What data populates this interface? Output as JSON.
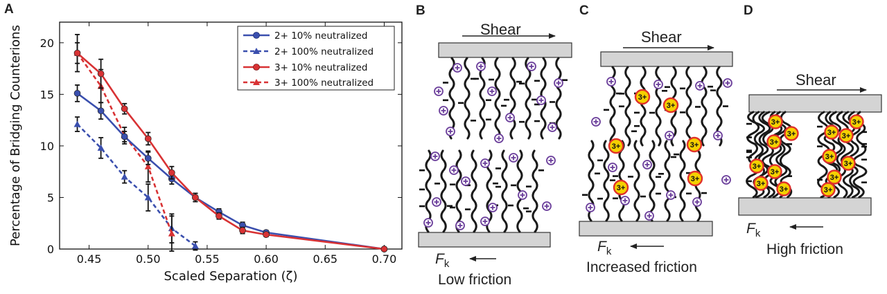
{
  "panels": [
    "A",
    "B",
    "C",
    "D"
  ],
  "chart_data": {
    "type": "line",
    "xlabel": "Scaled Separation (ζ)",
    "ylabel": "Percentage of Bridging Counterions",
    "xlim": [
      0.425,
      0.715
    ],
    "ylim": [
      0,
      22
    ],
    "xticks": [
      0.45,
      0.5,
      0.55,
      0.6,
      0.65,
      0.7
    ],
    "xtick_labels": [
      "0.45",
      "0.50",
      "0.55",
      "0.60",
      "0.65",
      "0.70"
    ],
    "yticks": [
      0,
      5,
      10,
      15,
      20
    ],
    "ytick_labels": [
      "0",
      "5",
      "10",
      "15",
      "20"
    ],
    "legend_position": "top-right",
    "series": [
      {
        "name": "2+ 10% neutralized",
        "color": "#3a4fae",
        "dashed": false,
        "marker": "circle",
        "x": [
          0.44,
          0.46,
          0.48,
          0.5,
          0.52,
          0.54,
          0.56,
          0.58,
          0.6,
          0.7
        ],
        "y": [
          15.1,
          13.4,
          10.9,
          8.8,
          6.8,
          5.0,
          3.6,
          2.3,
          1.6,
          0.0
        ],
        "err": [
          0.8,
          0.8,
          0.5,
          0.6,
          0.5,
          0.4,
          0.3,
          0.3,
          0.2,
          0.0
        ]
      },
      {
        "name": "2+ 100% neutralized",
        "color": "#3a4fae",
        "dashed": true,
        "marker": "triangle",
        "x": [
          0.44,
          0.46,
          0.48,
          0.5,
          0.52,
          0.54
        ],
        "y": [
          12.1,
          9.8,
          7.0,
          5.0,
          2.0,
          0.3
        ],
        "err": [
          0.7,
          1.0,
          0.6,
          1.3,
          1.4,
          0.4
        ]
      },
      {
        "name": "3+ 10% neutralized",
        "color": "#d83234",
        "dashed": false,
        "marker": "circle",
        "x": [
          0.44,
          0.46,
          0.48,
          0.5,
          0.52,
          0.54,
          0.56,
          0.58,
          0.6,
          0.7
        ],
        "y": [
          19.0,
          17.0,
          13.6,
          10.7,
          7.4,
          5.0,
          3.2,
          1.8,
          1.4,
          0.0
        ],
        "err": [
          1.8,
          1.4,
          0.5,
          0.6,
          0.6,
          0.4,
          0.3,
          0.3,
          0.2,
          0.0
        ]
      },
      {
        "name": "3+ 100% neutralized",
        "color": "#d83234",
        "dashed": true,
        "marker": "triangle",
        "x": [
          0.44,
          0.46,
          0.48,
          0.5,
          0.52
        ],
        "y": [
          19.0,
          15.8,
          11.0,
          8.0,
          1.5
        ],
        "err": [
          1.0,
          1.6,
          0.8,
          1.5,
          1.7
        ]
      }
    ]
  },
  "schematics": {
    "shear_label": "Shear",
    "force_symbol": "F",
    "force_subscript": "k",
    "ion_label": "3+",
    "ion_color": "#f5d000",
    "ion_ring_color": "#e0312b",
    "counterion_color": "#6a3d9a",
    "captions": [
      "Low friction",
      "Increased friction",
      "High friction"
    ]
  }
}
